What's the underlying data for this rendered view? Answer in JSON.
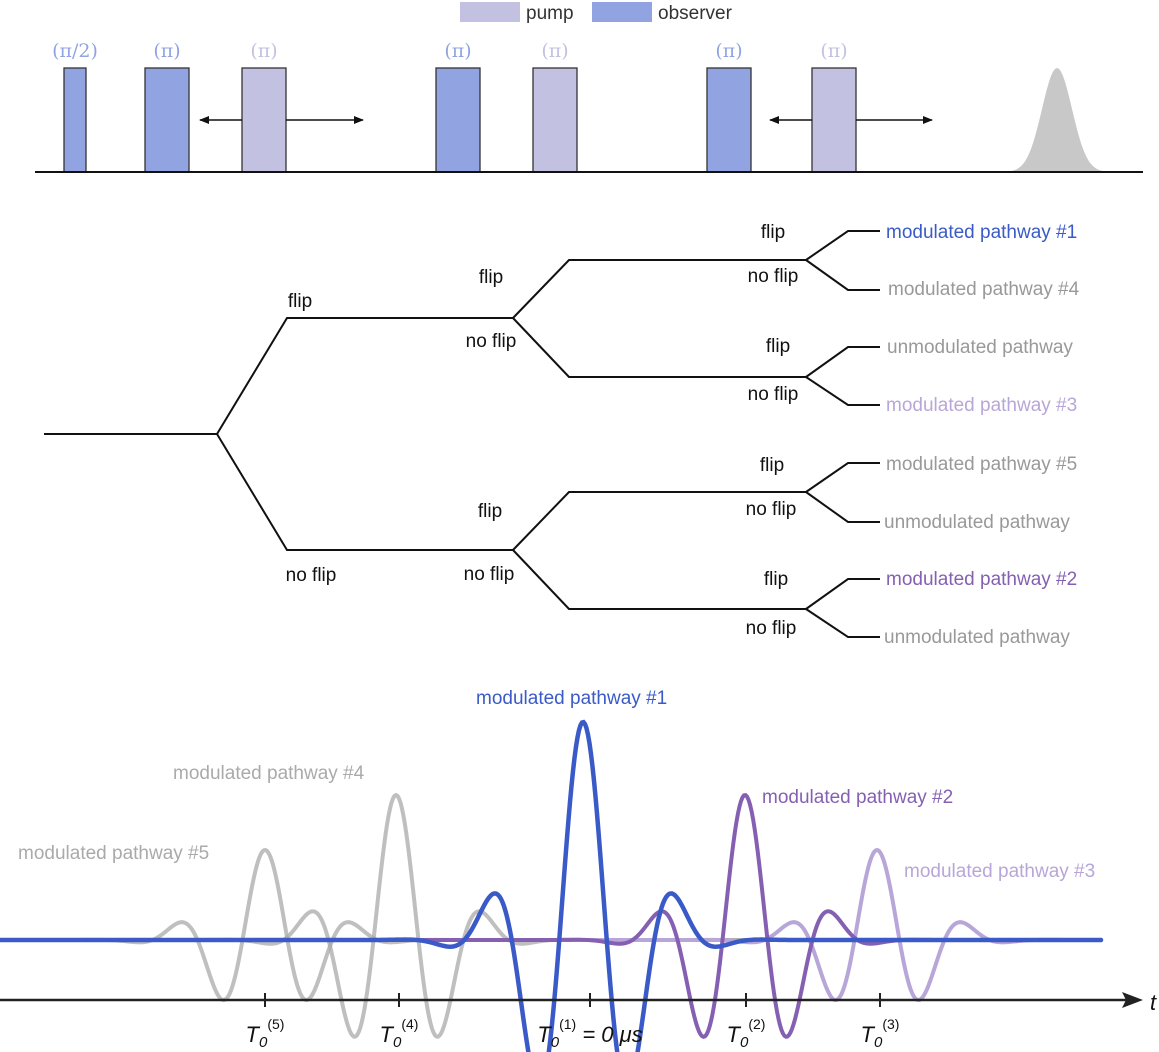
{
  "legend": {
    "pump_label": "pump",
    "observer_label": "observer",
    "pump_color": "#c3c1e1",
    "observer_color": "#91a4e1"
  },
  "pulses": [
    {
      "label": "(π/2)",
      "kind": "observer",
      "shape": "narrow"
    },
    {
      "label": "(π)",
      "kind": "observer",
      "shape": "wide"
    },
    {
      "label": "(π)",
      "kind": "pump",
      "shape": "wide",
      "movable": true
    },
    {
      "label": "(π)",
      "kind": "observer",
      "shape": "wide"
    },
    {
      "label": "(π)",
      "kind": "pump",
      "shape": "wide"
    },
    {
      "label": "(π)",
      "kind": "observer",
      "shape": "wide"
    },
    {
      "label": "(π)",
      "kind": "pump",
      "shape": "wide",
      "movable": true
    }
  ],
  "echo_color": "#c8c8c8",
  "tree": {
    "flip_label": "flip",
    "noflip_label": "no flip",
    "outcomes": [
      {
        "label": "modulated pathway #1",
        "color": "#3a5bc7"
      },
      {
        "label": "modulated pathway #4",
        "color": "#999999"
      },
      {
        "label": "unmodulated pathway",
        "color": "#999999"
      },
      {
        "label": "modulated pathway #3",
        "color": "#b9a6d8"
      },
      {
        "label": "modulated pathway #5",
        "color": "#999999"
      },
      {
        "label": "unmodulated pathway",
        "color": "#999999"
      },
      {
        "label": "modulated pathway #2",
        "color": "#8560b2"
      },
      {
        "label": "unmodulated pathway",
        "color": "#999999"
      }
    ]
  },
  "signals": {
    "pathway1": {
      "label": "modulated pathway #1",
      "color": "#3a5bc7"
    },
    "pathway2": {
      "label": "modulated pathway #2",
      "color": "#8560b2"
    },
    "pathway3": {
      "label": "modulated pathway #3",
      "color": "#b9a6d8"
    },
    "pathway4": {
      "label": "modulated pathway #4",
      "color": "#aaaaaa"
    },
    "pathway5": {
      "label": "modulated pathway #5",
      "color": "#aaaaaa"
    }
  },
  "axis": {
    "label": "t",
    "ticks": [
      {
        "base": "T",
        "sub": "0",
        "sup": "(5)",
        "suffix": ""
      },
      {
        "base": "T",
        "sub": "0",
        "sup": "(4)",
        "suffix": ""
      },
      {
        "base": "T",
        "sub": "0",
        "sup": "(1)",
        "suffix": " = 0 μs"
      },
      {
        "base": "T",
        "sub": "0",
        "sup": "(2)",
        "suffix": ""
      },
      {
        "base": "T",
        "sub": "0",
        "sup": "(3)",
        "suffix": ""
      }
    ]
  }
}
